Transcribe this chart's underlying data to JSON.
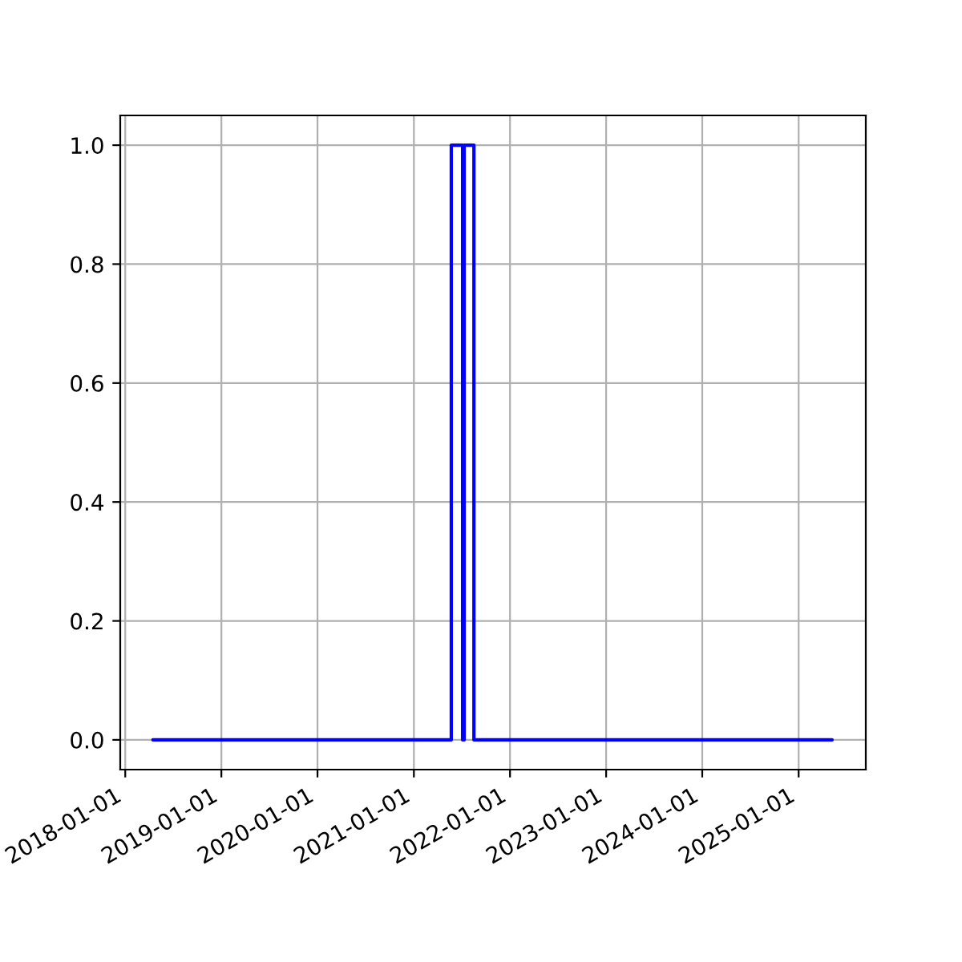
{
  "chart_data": {
    "type": "line",
    "x": [
      "2018-04-16",
      "2021-05-23",
      "2021-05-23",
      "2021-07-05",
      "2021-07-05"
    ],
    "series": [
      {
        "color": "#0000ff",
        "values": [
          0,
          0,
          1,
          1,
          0
        ]
      },
      {
        "color": "#0000ff",
        "x": [
          "2021-07-11",
          "2021-07-11",
          "2021-08-17",
          "2021-08-17",
          "2025-05-08"
        ],
        "values": [
          0,
          1,
          1,
          0,
          0
        ]
      }
    ],
    "xlim": [
      "2017-12-13",
      "2025-09-13"
    ],
    "xticks": [
      "2018-01-01",
      "2019-01-01",
      "2020-01-01",
      "2021-01-01",
      "2022-01-01",
      "2023-01-01",
      "2024-01-01",
      "2025-01-01"
    ],
    "ylim": [
      -0.05,
      1.05
    ],
    "yticks": [
      {
        "value": 0,
        "label": "0.0"
      },
      {
        "value": 0.2,
        "label": "0.2"
      },
      {
        "value": 0.4,
        "label": "0.4"
      },
      {
        "value": 0.6,
        "label": "0.6"
      },
      {
        "value": 0.8,
        "label": "0.8"
      },
      {
        "value": 1,
        "label": "1.0"
      }
    ],
    "grid": true
  }
}
